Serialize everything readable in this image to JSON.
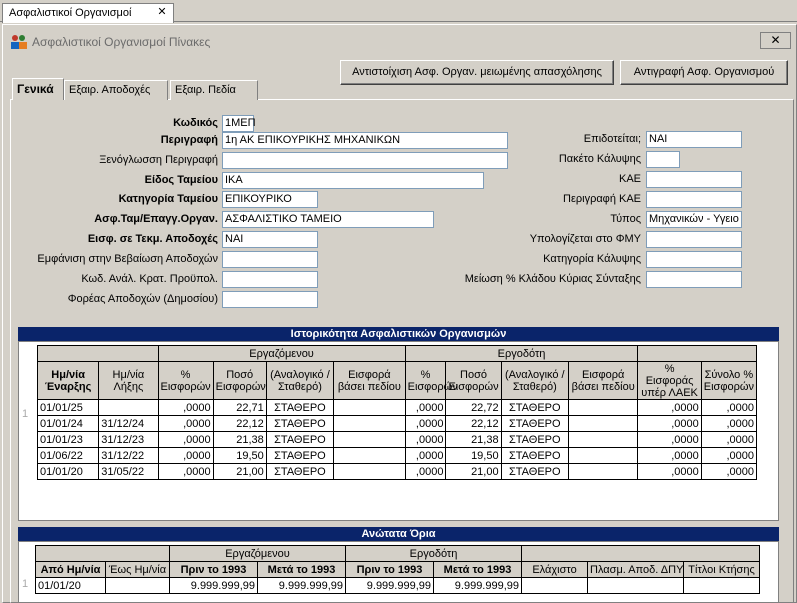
{
  "doc_tab": {
    "label": "Ασφαλιστικοί Οργανισμοί",
    "close": "✕"
  },
  "window": {
    "title": "Ασφαλιστικοί Οργανισμοί Πίνακες",
    "close": "✕"
  },
  "toolbar": {
    "match_btn": "Αντιστοίχιση Ασφ. Οργαν. μειωμένης απασχόλησης",
    "copy_btn": "Αντιγραφή Ασφ. Οργανισμού"
  },
  "tabs": [
    "Γενικά",
    "Εξαιρ. Αποδοχές",
    "Εξαιρ. Πεδία"
  ],
  "form_left": [
    {
      "label": "Κωδικός",
      "value": "1ΜΕΠ",
      "bold": true
    },
    {
      "label": "Περιγραφή",
      "value": "1η ΑΚ ΕΠΙΚΟΥΡΙΚΗΣ ΜΗΧΑΝΙΚΩΝ",
      "bold": true
    },
    {
      "label": "Ξενόγλωσση Περιγραφή",
      "value": ""
    },
    {
      "label": "Είδος Ταμείου",
      "value": "ΙΚΑ",
      "bold": true
    },
    {
      "label": "Κατηγορία Ταμείου",
      "value": "ΕΠΙΚΟΥΡΙΚΟ",
      "bold": true
    },
    {
      "label": "Ασφ.Ταμ/Επαγγ.Οργαν.",
      "value": "ΑΣΦΑΛΙΣΤΙΚΟ ΤΑΜΕΙΟ",
      "bold": true
    },
    {
      "label": "Εισφ. σε Τεκμ. Αποδοχές",
      "value": "ΝΑΙ",
      "bold": true
    },
    {
      "label": "Εμφάνιση στην Βεβαίωση Αποδοχών",
      "value": ""
    },
    {
      "label": "Κωδ. Ανάλ. Κρατ. Προϋπολ.",
      "value": ""
    },
    {
      "label": "Φορέας Αποδοχών (Δημοσίου)",
      "value": ""
    }
  ],
  "form_right": [
    {
      "label": "Επιδοτείται;",
      "value": "ΝΑΙ"
    },
    {
      "label": "Πακέτο Κάλυψης",
      "value": ""
    },
    {
      "label": "ΚΑΕ",
      "value": ""
    },
    {
      "label": "Περιγραφή ΚΑΕ",
      "value": ""
    },
    {
      "label": "Τύπος",
      "value": "Μηχανικών - Υγειο"
    },
    {
      "label": "Υπολογίζεται στο ΦΜΥ",
      "value": ""
    },
    {
      "label": "Κατηγορία Κάλυψης",
      "value": ""
    },
    {
      "label": "Μείωση % Κλάδου Κύριας Σύνταξης",
      "value": ""
    }
  ],
  "history": {
    "title": "Ιστορικότητα Ασφαλιστικών Οργανισμών",
    "group_employee": "Εργαζόμενου",
    "group_employer": "Εργοδότη",
    "headers": [
      "Ημ/νία Έναρξης",
      "Ημ/νία Λήξης",
      "% Εισφορών",
      "Ποσό Εισφορών",
      "(Αναλογικό / Σταθερό)",
      "Εισφορά βάσει πεδίου",
      "% Εισφορών",
      "Ποσό Εισφορών",
      "(Αναλογικό / Σταθερό)",
      "Εισφορά βάσει πεδίου",
      "% Εισφοράς υπέρ ΛΑΕΚ",
      "Σύνολο % Εισφορών"
    ],
    "rows": [
      [
        "01/01/25",
        "",
        ",0000",
        "22,71",
        "ΣΤΑΘΕΡΟ",
        "",
        ",0000",
        "22,72",
        "ΣΤΑΘΕΡΟ",
        "",
        ",0000",
        ",0000"
      ],
      [
        "01/01/24",
        "31/12/24",
        ",0000",
        "22,12",
        "ΣΤΑΘΕΡΟ",
        "",
        ",0000",
        "22,12",
        "ΣΤΑΘΕΡΟ",
        "",
        ",0000",
        ",0000"
      ],
      [
        "01/01/23",
        "31/12/23",
        ",0000",
        "21,38",
        "ΣΤΑΘΕΡΟ",
        "",
        ",0000",
        "21,38",
        "ΣΤΑΘΕΡΟ",
        "",
        ",0000",
        ",0000"
      ],
      [
        "01/06/22",
        "31/12/22",
        ",0000",
        "19,50",
        "ΣΤΑΘΕΡΟ",
        "",
        ",0000",
        "19,50",
        "ΣΤΑΘΕΡΟ",
        "",
        ",0000",
        ",0000"
      ],
      [
        "01/01/20",
        "31/05/22",
        ",0000",
        "21,00",
        "ΣΤΑΘΕΡΟ",
        "",
        ",0000",
        "21,00",
        "ΣΤΑΘΕΡΟ",
        "",
        ",0000",
        ",0000"
      ]
    ]
  },
  "limits": {
    "title": "Ανώτατα Όρια",
    "group_employee": "Εργαζόμενου",
    "group_employer": "Εργοδότη",
    "headers": [
      "Από Ημ/νία",
      "Έως Ημ/νία",
      "Πριν το 1993",
      "Μετά το 1993",
      "Πριν το 1993",
      "Μετά το 1993",
      "Ελάχιστο",
      "Πλασμ. Αποδ. ΔΠΥ",
      "Τίτλοι Κτήσης"
    ],
    "rows": [
      [
        "01/01/20",
        "",
        "9.999.999,99",
        "9.999.999,99",
        "9.999.999,99",
        "9.999.999,99",
        "",
        "",
        ""
      ]
    ],
    "row_marker": "1"
  }
}
